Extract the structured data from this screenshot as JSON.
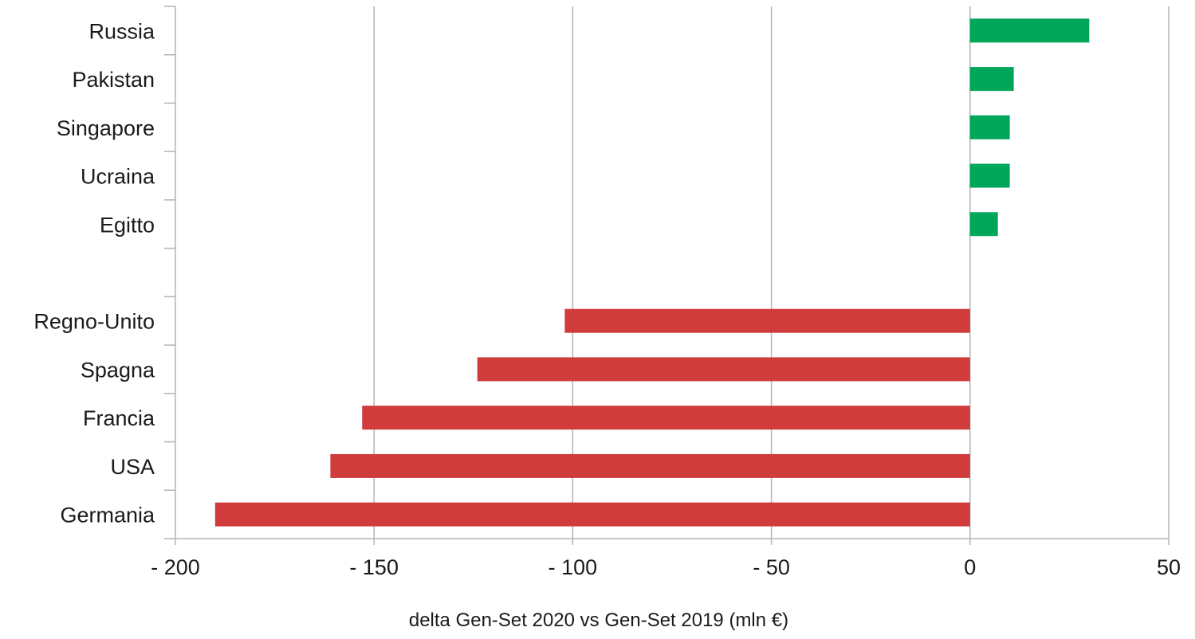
{
  "chart_data": {
    "type": "bar",
    "orientation": "horizontal",
    "categories": [
      "Russia",
      "Pakistan",
      "Singapore",
      "Ucraina",
      "Egitto",
      "",
      "Regno-Unito",
      "Spagna",
      "Francia",
      "USA",
      "Germania"
    ],
    "values": [
      30,
      11,
      10,
      10,
      7,
      null,
      -102,
      -124,
      -153,
      -161,
      -190
    ],
    "bar_colors": [
      "#00a65a",
      "#00a65a",
      "#00a65a",
      "#00a65a",
      "#00a65a",
      null,
      "#d03c3c",
      "#d03c3c",
      "#d03c3c",
      "#d03c3c",
      "#d03c3c"
    ],
    "xlim": [
      -200,
      50
    ],
    "x_ticks": [
      -200,
      -150,
      -100,
      -50,
      0,
      50
    ],
    "x_tick_labels": [
      "- 200",
      "- 150",
      "- 100",
      "- 50",
      "0",
      "50"
    ],
    "xlabel": "delta Gen-Set 2020 vs Gen-Set 2019 (mln €)",
    "ylabel": "",
    "title": "",
    "grid": "vertical",
    "legend": "none",
    "colors": {
      "positive": "#00a65a",
      "negative": "#d03c3c",
      "grid": "#b3b3b3",
      "axis": "#b3b3b3"
    }
  }
}
